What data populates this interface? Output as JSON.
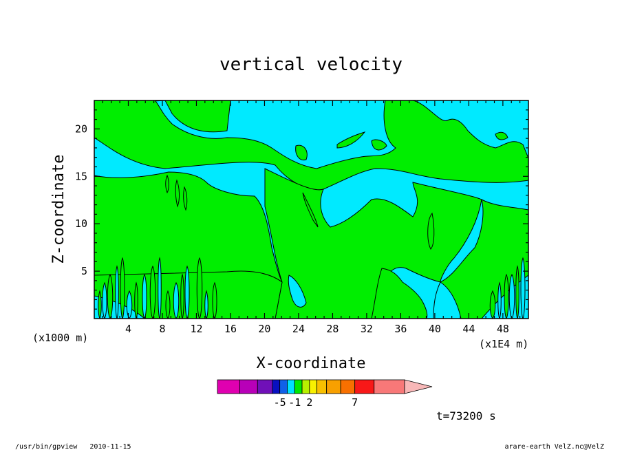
{
  "chart_data": {
    "type": "heatmap",
    "title": "vertical velocity",
    "xlabel": "X-coordinate",
    "ylabel": "Z-coordinate",
    "x_unit_left": "(x1000 m)",
    "x_unit_right": "(x1E4 m)",
    "xlim": [
      0,
      51
    ],
    "ylim": [
      0,
      23
    ],
    "x_ticks": [
      4,
      8,
      12,
      16,
      20,
      24,
      28,
      32,
      36,
      40,
      44,
      48
    ],
    "y_ticks": [
      5,
      10,
      15,
      20
    ],
    "time_label": "t=73200 s",
    "colorbar": {
      "labels": [
        {
          "text": "-5",
          "value": -5
        },
        {
          "text": "-1",
          "value": -1
        },
        {
          "text": "2",
          "value": 2
        },
        {
          "text": "7",
          "value": 7
        }
      ],
      "bins": [
        {
          "color": "#e000b0",
          "w": 3
        },
        {
          "color": "#b800b8",
          "w": 2.4
        },
        {
          "color": "#7010b8",
          "w": 2
        },
        {
          "color": "#0810c0",
          "w": 1
        },
        {
          "color": "#1060e8",
          "w": 1
        },
        {
          "color": "#00e0ff",
          "w": 1
        },
        {
          "color": "#00e800",
          "w": 1
        },
        {
          "color": "#b8f000",
          "w": 1
        },
        {
          "color": "#f8f000",
          "w": 1
        },
        {
          "color": "#f8c000",
          "w": 1.3
        },
        {
          "color": "#f8a000",
          "w": 1.9
        },
        {
          "color": "#f87000",
          "w": 1.9
        },
        {
          "color": "#f81818",
          "w": 2.6
        },
        {
          "color": "#f87878",
          "w": 4.1
        }
      ],
      "arrow_color": "#f8b8b8"
    },
    "fields": {
      "background_color": "#00eaff",
      "region_color": "#00ee00"
    }
  },
  "footer": {
    "left": "/usr/bin/gpview   2010-11-15",
    "right": "arare-earth_VelZ.nc@VelZ"
  }
}
